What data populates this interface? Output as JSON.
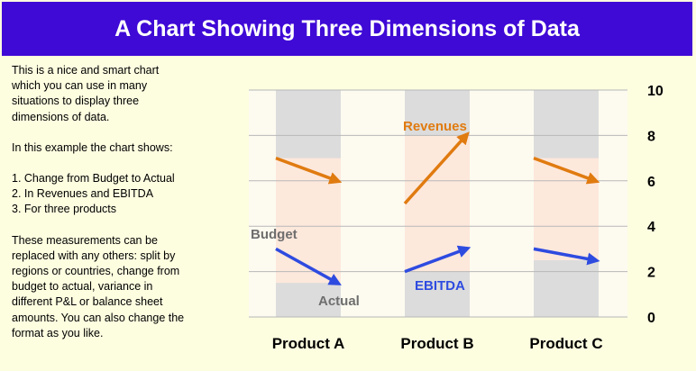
{
  "title": "A Chart Showing Three Dimensions of Data",
  "description": {
    "intro": [
      "This is a nice and smart chart",
      "which you can use in many",
      "situations to display three",
      "dimensions of data."
    ],
    "lead": "In this example the chart shows:",
    "list": [
      "1. Change from Budget to Actual",
      "2. In Revenues and EBITDA",
      "3. For three products"
    ],
    "outro": [
      "These measurements can be",
      "replaced with any others: split by",
      "regions or countries, change from",
      "budget to actual, variance in",
      "different P&L or balance sheet",
      "amounts. You can also change the",
      "format as you like."
    ]
  },
  "colors": {
    "title_bg": "#3f09d6",
    "page_bg": "#fdfde0",
    "plot_bg": "#fdfbf0",
    "gray_band": "#dcdcdc",
    "peach_band": "#fde8dc",
    "revenues": "#e07b10",
    "ebitda": "#2e4be0",
    "label_gray": "#6e6e6e"
  },
  "chart_data": {
    "type": "line",
    "categories": [
      "Product A",
      "Product B",
      "Product C"
    ],
    "phases": [
      "Budget",
      "Actual"
    ],
    "series": [
      {
        "name": "Revenues",
        "budget": [
          7,
          5,
          7
        ],
        "actual": [
          6,
          8,
          6
        ]
      },
      {
        "name": "EBITDA",
        "budget": [
          3,
          2,
          3
        ],
        "actual": [
          1.5,
          3,
          2.5
        ]
      }
    ],
    "ylim": [
      0,
      10
    ],
    "yticks": [
      0,
      2,
      4,
      6,
      8,
      10
    ],
    "y_axis_side": "right",
    "grid": true,
    "annotations": {
      "budget": "Budget",
      "actual": "Actual",
      "revenues": "Revenues",
      "ebitda": "EBITDA"
    }
  }
}
